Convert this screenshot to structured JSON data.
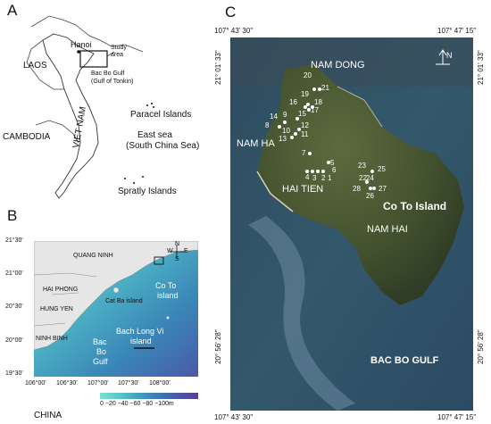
{
  "panel_a": {
    "letter": "A",
    "hanoi": "Hanoi",
    "study_area": "Study area",
    "laos": "LAOS",
    "gulf1": "Bac Bo Gulf",
    "gulf2": "(Gulf of Tonkin)",
    "paracel": "Paracel Islands",
    "cambodia": "CAMBODIA",
    "vietnam": "VIET NAM",
    "east_sea1": "East sea",
    "east_sea2": "(South China Sea)",
    "spratly": "Spratly Islands"
  },
  "panel_b": {
    "letter": "B",
    "quang_ninh": "QUANG NINH",
    "hai_phong": "HAI PHONG",
    "hung_yen": "HUNG YEN",
    "ninh_binh": "NINH BINH",
    "cat_ba": "Cat Ba island",
    "co_to1": "Co To",
    "co_to2": "island",
    "bach1": "Bach Long Vi",
    "bach2": "island",
    "bac1": "Bac",
    "bac2": "Bo",
    "bac3": "Gulf",
    "china": "CHINA",
    "compass_n": "N",
    "compass_s": "S",
    "compass_w": "W",
    "compass_e": "E",
    "lat_labels": [
      "21°30'",
      "21°00'",
      "20°30'",
      "20°00'",
      "19°30'"
    ],
    "lon_labels": [
      "106°00'",
      "106°30'",
      "107°00'",
      "107°30'",
      "108°00'"
    ],
    "depth_legend": "0 −20 −40 −60 −80 −100m",
    "depth_colors": [
      "#7ee0d2",
      "#5cc4c8",
      "#3f9fbe",
      "#3a79b3",
      "#4a57a6",
      "#5b3c9a"
    ]
  },
  "panel_c": {
    "letter": "C",
    "coord_tl": "107° 43' 30\"",
    "coord_tr": "107° 47' 15\"",
    "coord_bl": "107° 43' 30\"",
    "coord_br": "107° 47' 15\"",
    "lat_top_left": "21° 01' 33\"",
    "lat_top_right": "21° 01' 33\"",
    "lat_bot_left": "20° 56' 28\"",
    "lat_bot_right": "20° 56' 28\"",
    "north": "N",
    "nam_dong": "NAM DONG",
    "nam_ha": "NAM HA",
    "hai_tien": "HAI TIEN",
    "nam_hai": "NAM HAI",
    "co_to_island": "Co To Island",
    "bac_bo_gulf": "BAC BO GULF",
    "points": [
      "1",
      "2",
      "3",
      "4",
      "5",
      "6",
      "7",
      "8",
      "9",
      "10",
      "11",
      "12",
      "13",
      "14",
      "15",
      "16",
      "17",
      "18",
      "19",
      "20",
      "21",
      "22",
      "23",
      "24",
      "25",
      "26",
      "27",
      "28"
    ]
  }
}
